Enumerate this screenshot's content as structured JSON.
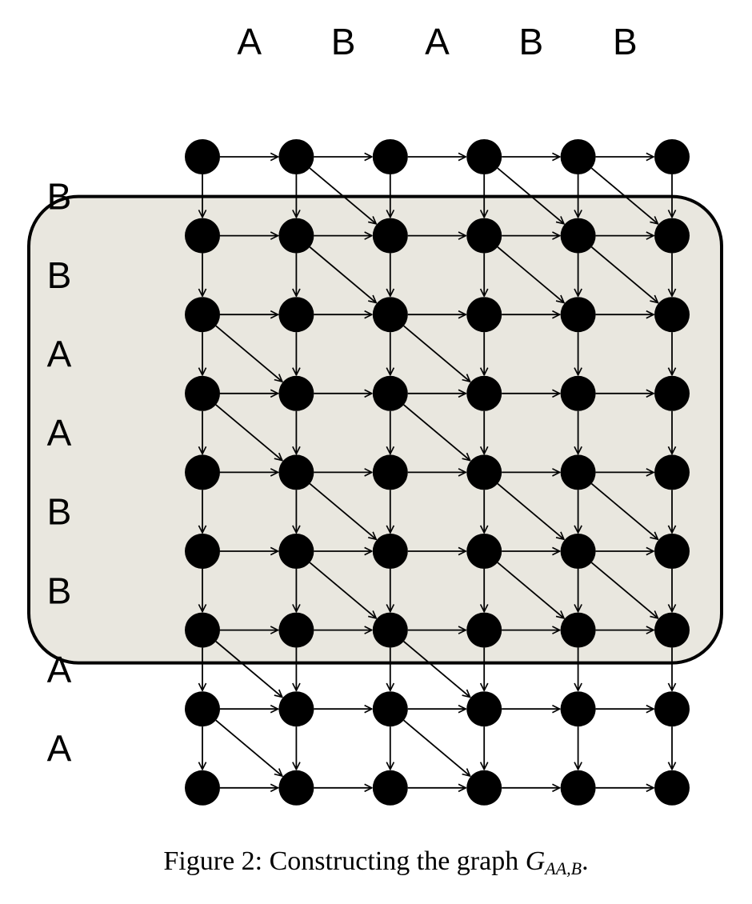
{
  "top_sequence": [
    "A",
    "B",
    "A",
    "B",
    "B"
  ],
  "left_sequence": [
    "B",
    "B",
    "A",
    "A",
    "B",
    "B",
    "A",
    "A"
  ],
  "highlight": {
    "first_row": 1,
    "last_row": 6,
    "fill": "#e9e7df",
    "stroke": "#000000"
  },
  "colors": {
    "node": "#000000",
    "edge": "#000000",
    "background": "#ffffff"
  },
  "caption": {
    "prefix": "Figure 2: Constructing the graph ",
    "symbol": "G",
    "subscript": "AA,B",
    "suffix": "."
  }
}
